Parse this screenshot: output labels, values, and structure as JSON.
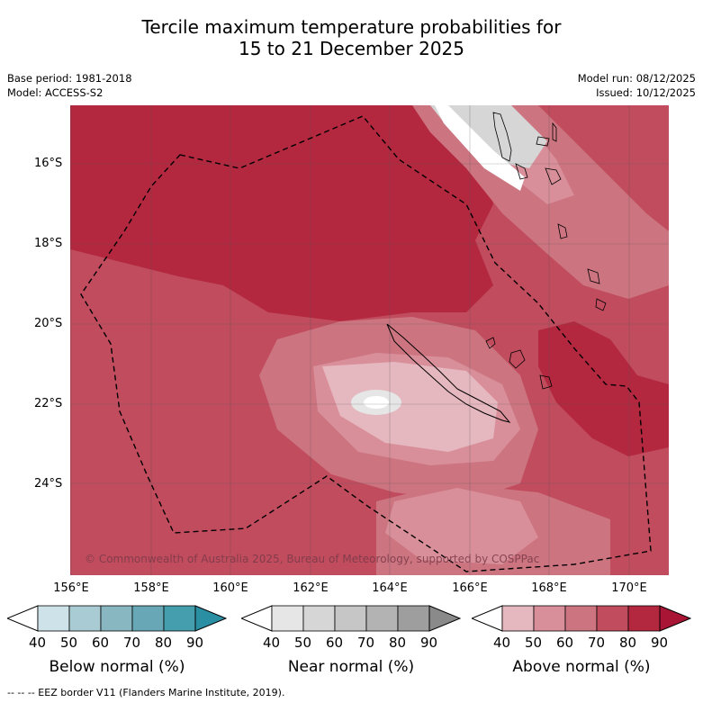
{
  "title_line1": "Tercile maximum temperature probabilities for",
  "title_line2": "15 to 21 December 2025",
  "base_period": "Base period: 1981-2018",
  "model": "Model: ACCESS-S2",
  "model_run": "Model run: 08/12/2025",
  "issued": "Issued: 10/12/2025",
  "copyright": "© Commonwealth of Australia 2025, Bureau of Meteorology, supported by COSPPac",
  "lat_labels": [
    "16°S",
    "18°S",
    "20°S",
    "22°S",
    "24°S"
  ],
  "lon_labels": [
    "156°E",
    "158°E",
    "160°E",
    "162°E",
    "164°E",
    "166°E",
    "168°E",
    "170°E"
  ],
  "colorbars": [
    {
      "title": "Below normal (%)",
      "ticks": [
        "40",
        "50",
        "60",
        "70",
        "80",
        "90"
      ],
      "colors": [
        "#ffffff",
        "#cde3e9",
        "#a9cbd3",
        "#88b7c2",
        "#67a7b6",
        "#459eae",
        "#2b8fa3"
      ]
    },
    {
      "title": "Near normal (%)",
      "ticks": [
        "40",
        "50",
        "60",
        "70",
        "80",
        "90"
      ],
      "colors": [
        "#ffffff",
        "#e6e6e6",
        "#d6d6d6",
        "#c6c6c6",
        "#b3b3b3",
        "#9e9e9e",
        "#8a8a8a"
      ]
    },
    {
      "title": "Above normal (%)",
      "ticks": [
        "40",
        "50",
        "60",
        "70",
        "80",
        "90"
      ],
      "colors": [
        "#ffffff",
        "#e5b7bf",
        "#d98f9a",
        "#cc7480",
        "#c04c5e",
        "#b3283f",
        "#a81535"
      ]
    }
  ],
  "legend_border": "--  --  -- EEZ border V11 (Flanders Marine Institute, 2019)."
}
